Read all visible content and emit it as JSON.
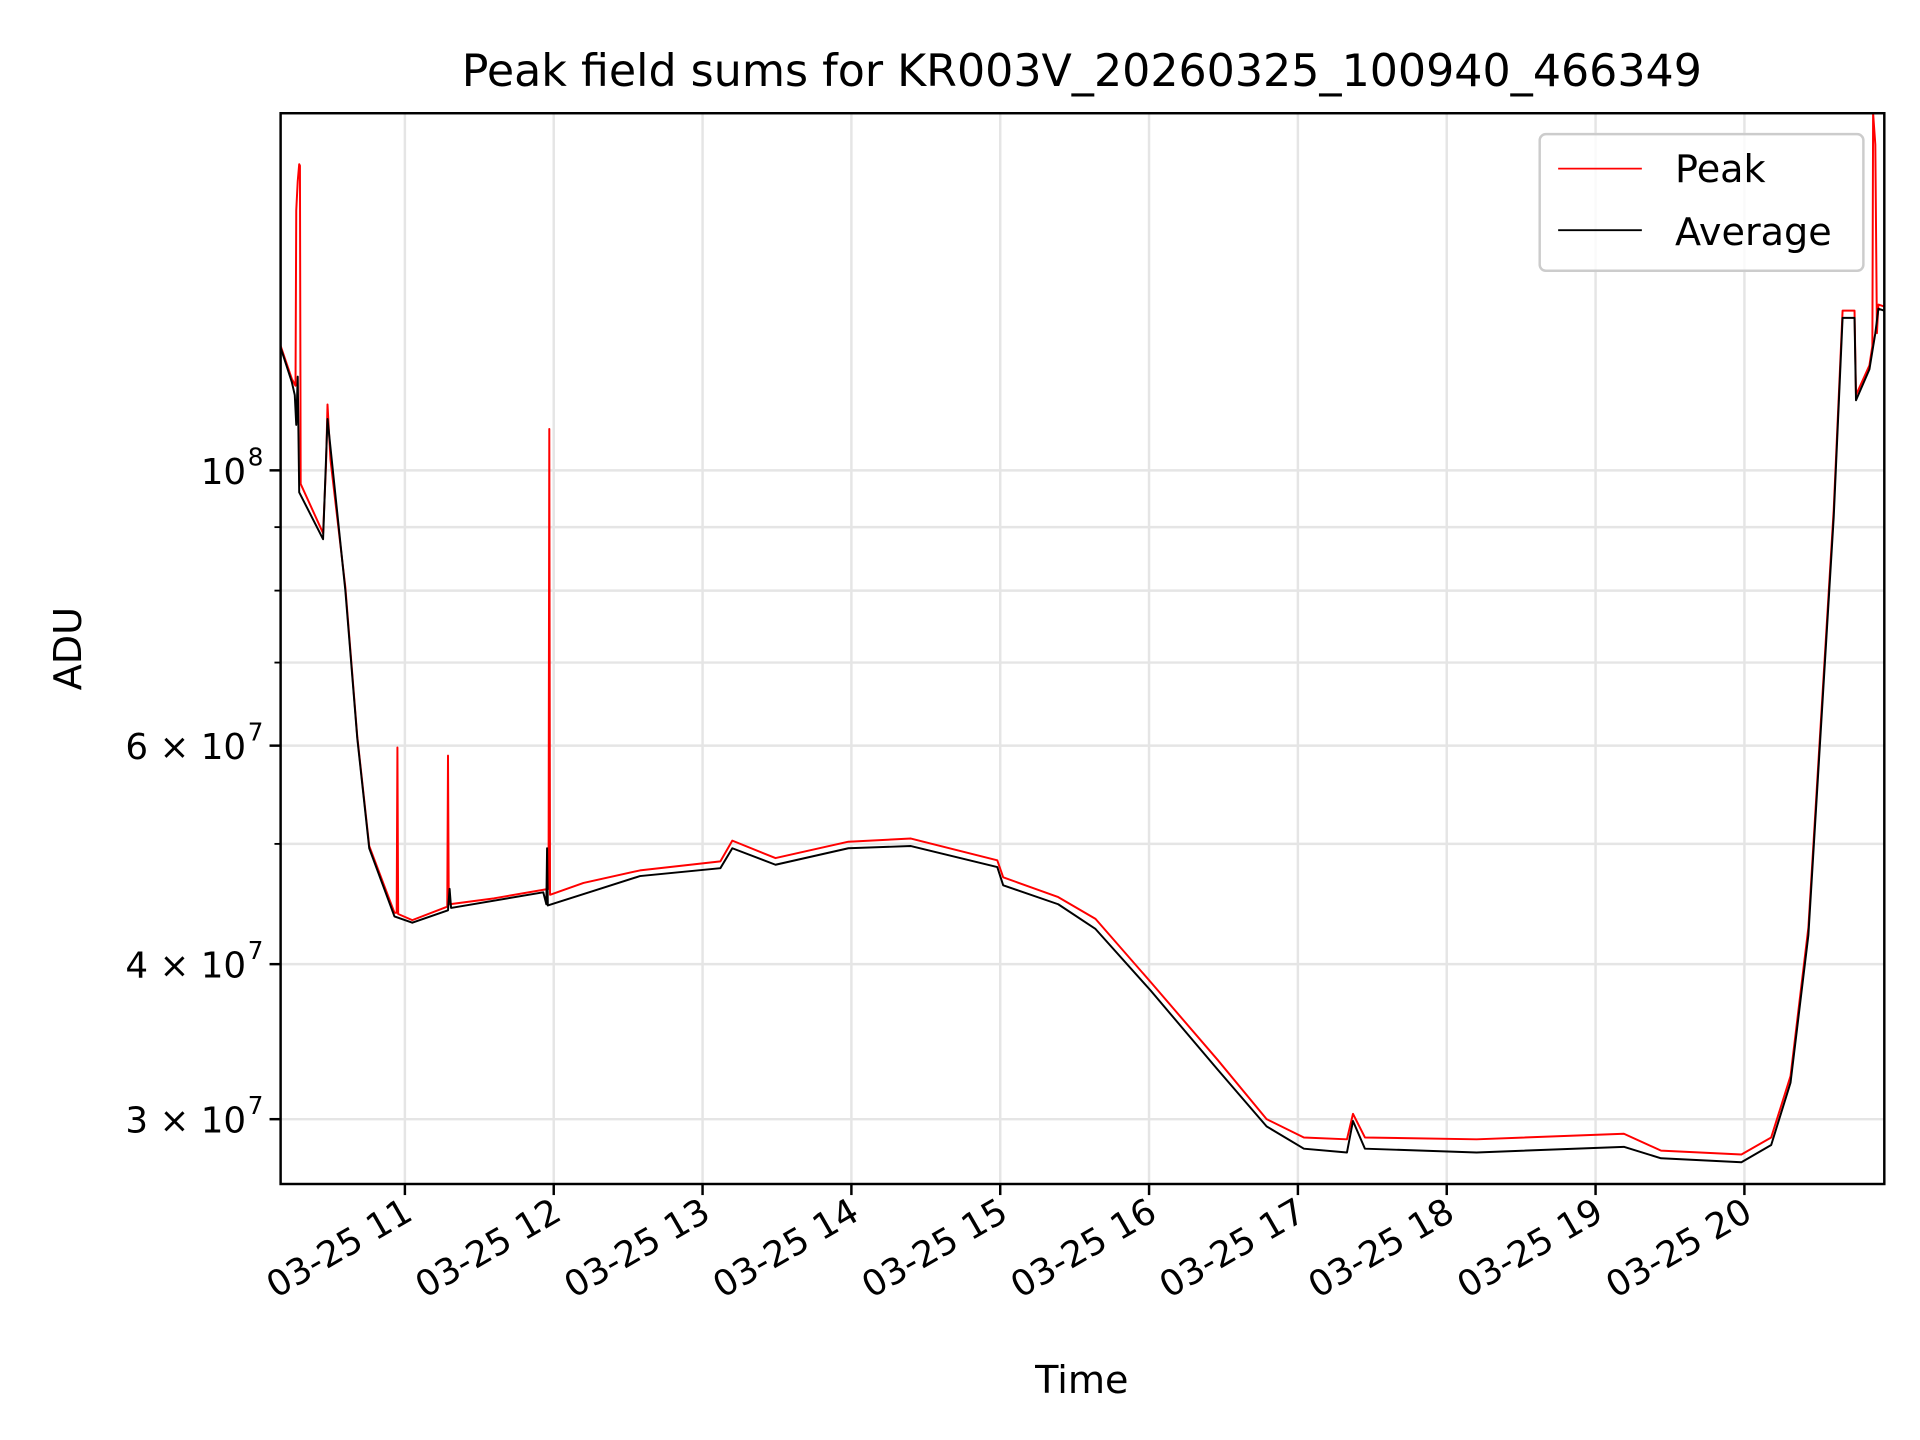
{
  "chart_data": {
    "type": "line",
    "title": "Peak field sums for KR003V_20260325_100940_466349",
    "xlabel": "Time",
    "ylabel": "ADU",
    "yscale": "log",
    "xlim_hours": [
      10.165,
      20.94
    ],
    "ylim": [
      26600000,
      194000000
    ],
    "grid": true,
    "legend_position": "top-right",
    "x_ticks": [
      {
        "hour": 11,
        "label": "03-25 11"
      },
      {
        "hour": 12,
        "label": "03-25 12"
      },
      {
        "hour": 13,
        "label": "03-25 13"
      },
      {
        "hour": 14,
        "label": "03-25 14"
      },
      {
        "hour": 15,
        "label": "03-25 15"
      },
      {
        "hour": 16,
        "label": "03-25 16"
      },
      {
        "hour": 17,
        "label": "03-25 17"
      },
      {
        "hour": 18,
        "label": "03-25 18"
      },
      {
        "hour": 19,
        "label": "03-25 19"
      },
      {
        "hour": 20,
        "label": "03-25 20"
      }
    ],
    "y_ticks": [
      {
        "value": 100000000,
        "base": "10",
        "exp": "8"
      },
      {
        "value": 60000000,
        "base": "6 × 10",
        "exp": "7"
      },
      {
        "value": 40000000,
        "base": "4 × 10",
        "exp": "7"
      },
      {
        "value": 30000000,
        "base": "3 × 10",
        "exp": "7"
      }
    ],
    "y_minor_ticks": [
      50000000,
      70000000,
      80000000,
      90000000
    ],
    "x_units": "hours on 2026-03-25",
    "y_units_in_points": 10000000,
    "series": [
      {
        "name": "Peak",
        "color": "#ff0000",
        "points": [
          [
            10.165,
            12.6
          ],
          [
            10.24,
            11.85
          ],
          [
            10.265,
            11.7
          ],
          [
            10.27,
            16.2
          ],
          [
            10.28,
            17.1
          ],
          [
            10.29,
            17.65
          ],
          [
            10.295,
            17.6
          ],
          [
            10.3,
            9.75
          ],
          [
            10.45,
            8.9
          ],
          [
            10.47,
            10.1
          ],
          [
            10.48,
            11.3
          ],
          [
            10.5,
            10.2
          ],
          [
            10.6,
            8.05
          ],
          [
            10.68,
            6.1
          ],
          [
            10.76,
            4.98
          ],
          [
            10.93,
            4.4
          ],
          [
            10.945,
            4.4
          ],
          [
            10.95,
            5.98
          ],
          [
            10.955,
            4.39
          ],
          [
            11.05,
            4.34
          ],
          [
            11.285,
            4.45
          ],
          [
            11.29,
            5.89
          ],
          [
            11.295,
            4.5
          ],
          [
            11.3,
            4.47
          ],
          [
            11.6,
            4.52
          ],
          [
            11.965,
            4.6
          ],
          [
            11.97,
            10.8
          ],
          [
            11.975,
            4.55
          ],
          [
            12.2,
            4.65
          ],
          [
            12.58,
            4.76
          ],
          [
            13.12,
            4.84
          ],
          [
            13.2,
            5.03
          ],
          [
            13.49,
            4.87
          ],
          [
            13.98,
            5.02
          ],
          [
            14.4,
            5.05
          ],
          [
            14.98,
            4.85
          ],
          [
            15.02,
            4.7
          ],
          [
            15.39,
            4.53
          ],
          [
            15.64,
            4.35
          ],
          [
            16.01,
            3.87
          ],
          [
            16.46,
            3.35
          ],
          [
            16.79,
            3.0
          ],
          [
            17.04,
            2.9
          ],
          [
            17.33,
            2.89
          ],
          [
            17.37,
            3.03
          ],
          [
            17.45,
            2.9
          ],
          [
            18.2,
            2.89
          ],
          [
            19.19,
            2.92
          ],
          [
            19.44,
            2.83
          ],
          [
            19.98,
            2.81
          ],
          [
            20.18,
            2.9
          ],
          [
            20.31,
            3.25
          ],
          [
            20.43,
            4.28
          ],
          [
            20.6,
            9.3
          ],
          [
            20.66,
            13.45
          ],
          [
            20.74,
            13.45
          ],
          [
            20.75,
            11.5
          ],
          [
            20.84,
            12.15
          ],
          [
            20.86,
            12.6
          ],
          [
            20.865,
            19.4
          ],
          [
            20.88,
            18.3
          ],
          [
            20.89,
            12.9
          ],
          [
            20.9,
            13.6
          ],
          [
            20.94,
            13.55
          ]
        ]
      },
      {
        "name": "Average",
        "color": "#000000",
        "points": [
          [
            10.165,
            12.56
          ],
          [
            10.24,
            11.78
          ],
          [
            10.26,
            11.5
          ],
          [
            10.27,
            10.88
          ],
          [
            10.28,
            11.9
          ],
          [
            10.29,
            9.6
          ],
          [
            10.45,
            8.8
          ],
          [
            10.48,
            11.0
          ],
          [
            10.6,
            8.0
          ],
          [
            10.68,
            6.08
          ],
          [
            10.76,
            4.96
          ],
          [
            10.93,
            4.37
          ],
          [
            11.05,
            4.32
          ],
          [
            11.29,
            4.42
          ],
          [
            11.3,
            4.6
          ],
          [
            11.31,
            4.44
          ],
          [
            11.93,
            4.57
          ],
          [
            11.95,
            4.47
          ],
          [
            11.955,
            4.96
          ],
          [
            11.96,
            4.46
          ],
          [
            12.58,
            4.71
          ],
          [
            13.12,
            4.78
          ],
          [
            13.2,
            4.96
          ],
          [
            13.49,
            4.81
          ],
          [
            13.98,
            4.96
          ],
          [
            14.4,
            4.98
          ],
          [
            14.98,
            4.79
          ],
          [
            15.02,
            4.63
          ],
          [
            15.39,
            4.47
          ],
          [
            15.64,
            4.27
          ],
          [
            16.01,
            3.81
          ],
          [
            16.46,
            3.29
          ],
          [
            16.79,
            2.96
          ],
          [
            17.04,
            2.84
          ],
          [
            17.33,
            2.82
          ],
          [
            17.37,
            2.99
          ],
          [
            17.45,
            2.84
          ],
          [
            18.2,
            2.82
          ],
          [
            19.19,
            2.85
          ],
          [
            19.44,
            2.79
          ],
          [
            19.98,
            2.77
          ],
          [
            20.18,
            2.86
          ],
          [
            20.31,
            3.21
          ],
          [
            20.43,
            4.22
          ],
          [
            20.6,
            9.17
          ],
          [
            20.66,
            13.27
          ],
          [
            20.74,
            13.27
          ],
          [
            20.75,
            11.39
          ],
          [
            20.84,
            12.06
          ],
          [
            20.88,
            12.9
          ],
          [
            20.9,
            13.5
          ],
          [
            20.94,
            13.45
          ]
        ]
      }
    ]
  }
}
